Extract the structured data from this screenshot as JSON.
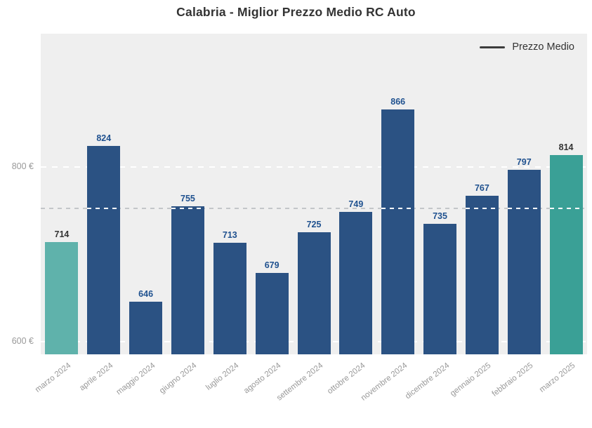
{
  "title": "Calabria - Miglior Prezzo Medio RC Auto",
  "legend": {
    "label": "Prezzo Medio"
  },
  "y_axis": {
    "ticks": [
      {
        "label": "600 €",
        "value": 600
      },
      {
        "label": "800 €",
        "value": 800
      }
    ]
  },
  "chart_data": {
    "type": "bar",
    "title": "Calabria - Miglior Prezzo Medio RC Auto",
    "categories": [
      "marzo 2024",
      "aprile 2024",
      "maggio 2024",
      "giugno 2024",
      "luglio 2024",
      "agosto 2024",
      "settembre 2024",
      "ottobre 2024",
      "novembre 2024",
      "dicembre 2024",
      "gennaio 2025",
      "febbraio 2025",
      "marzo 2025"
    ],
    "series": [
      {
        "name": "Prezzo Medio",
        "values": [
          714,
          824,
          646,
          755,
          713,
          679,
          725,
          749,
          866,
          735,
          767,
          797,
          814
        ]
      }
    ],
    "unit": "€",
    "ylabel": "",
    "xlabel": "",
    "ylim": [
      585,
      955
    ],
    "gridlines": [
      600,
      800
    ],
    "average_line": 752.6,
    "legend_position": "top-right",
    "colors": {
      "bar_default": "#2b5283",
      "bar_first_highlight": "#5fb2ab",
      "bar_last_highlight": "#3aa096",
      "value_label_default": "#1f518f",
      "value_label_highlight": "#333333",
      "plot_background": "#efefef",
      "gridline": "#ffffff",
      "average_line": "#c3c6c9",
      "axis_label": "#999999",
      "title": "#333333",
      "legend_line": "#3c3c3c"
    }
  }
}
